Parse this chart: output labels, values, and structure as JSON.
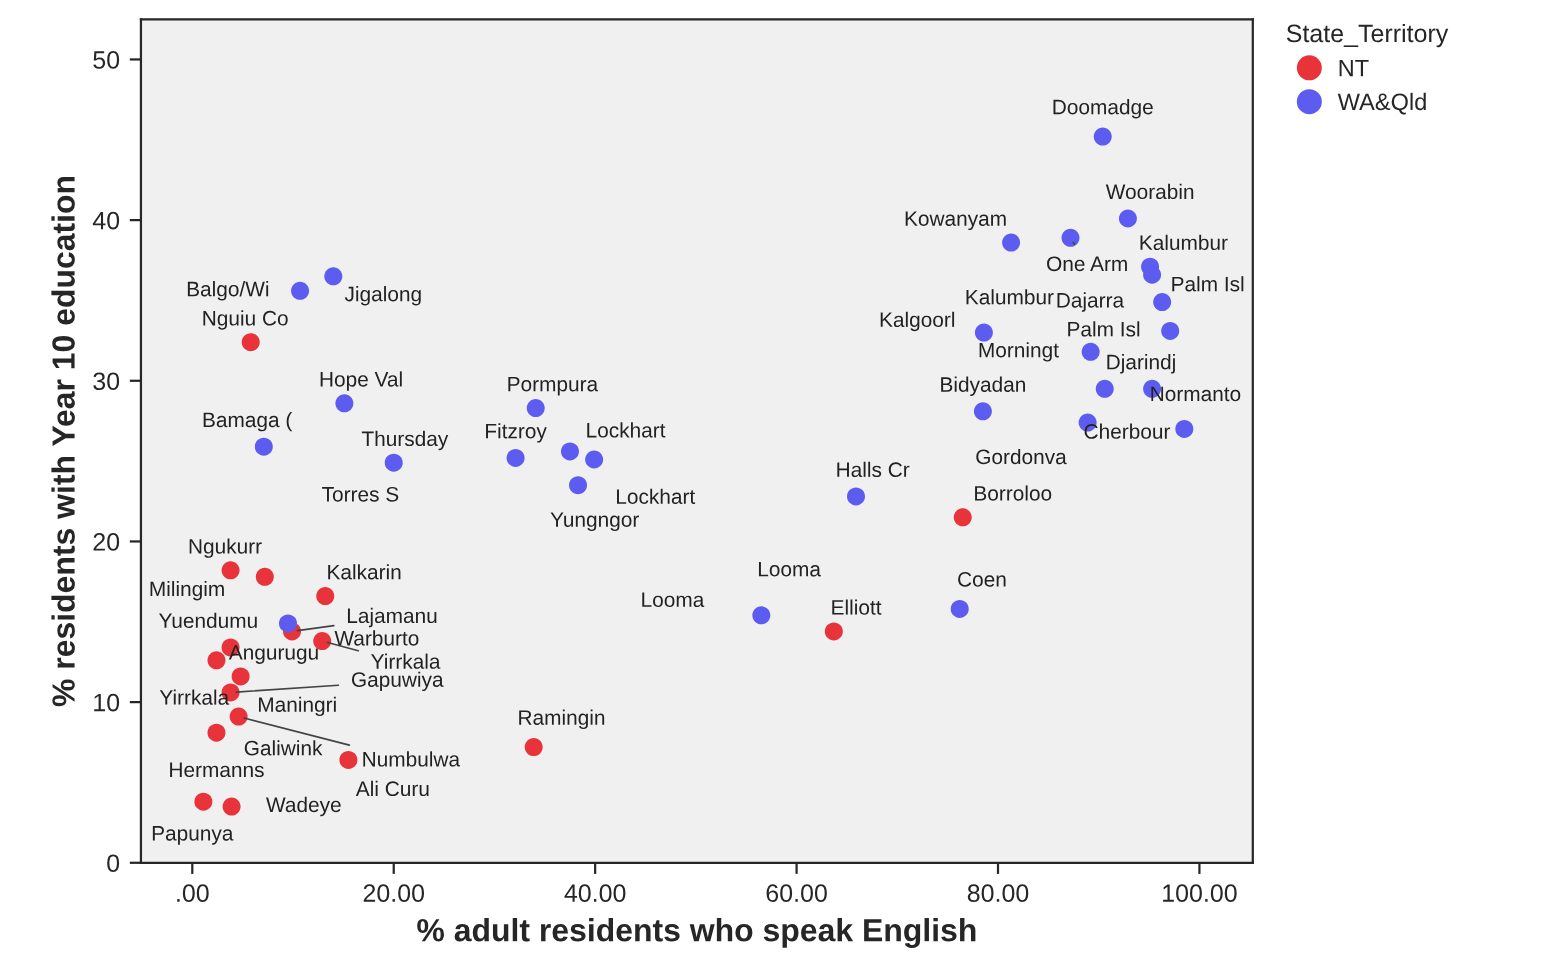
{
  "chart_data": {
    "type": "scatter",
    "xlabel": "% adult residents who speak English",
    "ylabel": "% residents with Year 10 education",
    "legend_title": "State_Territory",
    "legend": "top right",
    "grid": false,
    "marker": "circle",
    "xlim": [
      -5.1,
      105.3
    ],
    "ylim": [
      0,
      52.5
    ],
    "xticks": [
      {
        "value": 0,
        "label": ".00"
      },
      {
        "value": 20,
        "label": "20.00"
      },
      {
        "value": 40,
        "label": "40.00"
      },
      {
        "value": 60,
        "label": "60.00"
      },
      {
        "value": 80,
        "label": "80.00"
      },
      {
        "value": 100,
        "label": "100.00"
      }
    ],
    "yticks": [
      0,
      10,
      20,
      30,
      40,
      50
    ],
    "series": [
      {
        "name": "NT",
        "color": "#e8333a",
        "x": [
          5.8,
          3.8,
          7.2,
          13.2,
          9.9,
          12.9,
          3.8,
          2.4,
          4.8,
          3.8,
          4.6,
          2.4,
          15.5,
          33.9,
          1.1,
          3.9,
          63.7,
          76.5
        ],
        "values": [
          32.4,
          18.2,
          17.8,
          16.6,
          14.4,
          13.8,
          13.4,
          12.6,
          11.6,
          10.6,
          9.1,
          8.1,
          6.4,
          7.2,
          3.8,
          3.5,
          14.4,
          21.5
        ]
      },
      {
        "name": "WA&Qld",
        "color": "#5c5cf0",
        "x": [
          10.7,
          14.0,
          15.1,
          7.1,
          20.0,
          34.1,
          32.1,
          37.5,
          39.9,
          38.3,
          65.9,
          56.5,
          76.2,
          90.4,
          92.9,
          81.3,
          87.2,
          95.1,
          95.3,
          96.3,
          78.6,
          97.1,
          89.2,
          90.6,
          95.3,
          78.5,
          88.9,
          98.5,
          9.5
        ],
        "values": [
          35.6,
          36.5,
          28.6,
          25.9,
          24.9,
          28.3,
          25.2,
          25.6,
          25.1,
          23.5,
          22.8,
          15.4,
          15.8,
          45.2,
          40.1,
          38.6,
          38.9,
          37.1,
          36.6,
          34.9,
          33.0,
          33.1,
          31.8,
          29.5,
          29.5,
          28.1,
          27.4,
          27.0,
          14.9
        ]
      }
    ],
    "annotations": [
      {
        "text": "Nguiu Co",
        "x": 5.8,
        "y": 32.4
      },
      {
        "text": "Ngukurr",
        "x": 3.8,
        "y": 18.2
      },
      {
        "text": "Milingim",
        "x": 7.2,
        "y": 17.8
      },
      {
        "text": "Kalkarin",
        "x": 13.2,
        "y": 16.6
      },
      {
        "text": "Lajamanu",
        "x": 9.9,
        "y": 14.4
      },
      {
        "text": "Yirrkala",
        "x": 12.9,
        "y": 13.8
      },
      {
        "text": "Yuendumu",
        "x": 3.8,
        "y": 13.4
      },
      {
        "text": "Yirrkala",
        "x": 2.4,
        "y": 12.6
      },
      {
        "text": "Angurugu",
        "x": 4.8,
        "y": 11.6
      },
      {
        "text": "Maningri",
        "x": 3.8,
        "y": 10.6
      },
      {
        "text": "Gapuwiya",
        "x": 3.8,
        "y": 10.6
      },
      {
        "text": "Galiwink",
        "x": 4.6,
        "y": 9.1
      },
      {
        "text": "Numbulwa",
        "x": 4.6,
        "y": 9.1
      },
      {
        "text": "Hermanns",
        "x": 2.4,
        "y": 8.1
      },
      {
        "text": "Ali Curu",
        "x": 15.5,
        "y": 6.4
      },
      {
        "text": "Ramingin",
        "x": 33.9,
        "y": 7.2
      },
      {
        "text": "Papunya",
        "x": 1.1,
        "y": 3.8
      },
      {
        "text": "Wadeye",
        "x": 3.9,
        "y": 3.5
      },
      {
        "text": "Elliott",
        "x": 63.7,
        "y": 14.4
      },
      {
        "text": "Borroloo",
        "x": 76.5,
        "y": 21.5
      },
      {
        "text": "Balgo/Wi",
        "x": 10.7,
        "y": 35.6
      },
      {
        "text": "Jigalong",
        "x": 14.0,
        "y": 36.5
      },
      {
        "text": "Hope Val",
        "x": 15.1,
        "y": 28.6
      },
      {
        "text": "Bamaga (",
        "x": 7.1,
        "y": 25.9
      },
      {
        "text": "Thursday",
        "x": 20.0,
        "y": 24.9
      },
      {
        "text": "Torres S",
        "x": 20.0,
        "y": 24.9
      },
      {
        "text": "Pormpura",
        "x": 34.1,
        "y": 28.3
      },
      {
        "text": "Fitzroy",
        "x": 32.1,
        "y": 25.2
      },
      {
        "text": "Lockhart",
        "x": 37.5,
        "y": 25.6
      },
      {
        "text": "Lockhart",
        "x": 39.9,
        "y": 25.1
      },
      {
        "text": "Yungngor",
        "x": 38.3,
        "y": 23.5
      },
      {
        "text": "Halls Cr",
        "x": 65.9,
        "y": 22.8
      },
      {
        "text": "Looma",
        "x": 56.5,
        "y": 15.4
      },
      {
        "text": "Looma",
        "x": 56.5,
        "y": 15.4
      },
      {
        "text": "Coen",
        "x": 76.2,
        "y": 15.8
      },
      {
        "text": "Doomadge",
        "x": 90.4,
        "y": 45.2
      },
      {
        "text": "Woorabin",
        "x": 92.9,
        "y": 40.1
      },
      {
        "text": "Kowanyam",
        "x": 81.3,
        "y": 38.6
      },
      {
        "text": "One Arm",
        "x": 87.2,
        "y": 38.9
      },
      {
        "text": "Kalumbur",
        "x": 95.1,
        "y": 37.1
      },
      {
        "text": "Palm Isl",
        "x": 95.3,
        "y": 36.6
      },
      {
        "text": "Kalumbur",
        "x": 87.2,
        "y": 38.9
      },
      {
        "text": "Dajarra",
        "x": 96.3,
        "y": 34.9
      },
      {
        "text": "Kalgoorl",
        "x": 78.6,
        "y": 33.0
      },
      {
        "text": "Palm Isl",
        "x": 97.1,
        "y": 33.1
      },
      {
        "text": "Morningt",
        "x": 89.2,
        "y": 31.8
      },
      {
        "text": "Djarindj",
        "x": 95.3,
        "y": 29.5
      },
      {
        "text": "Bidyadan",
        "x": 78.5,
        "y": 28.1
      },
      {
        "text": "Gordonva",
        "x": 88.9,
        "y": 27.4
      },
      {
        "text": "Normanto",
        "x": 98.5,
        "y": 27.0
      },
      {
        "text": "Cherbour",
        "x": 90.6,
        "y": 29.5
      },
      {
        "text": "Warburto",
        "x": 9.5,
        "y": 14.9
      }
    ]
  }
}
